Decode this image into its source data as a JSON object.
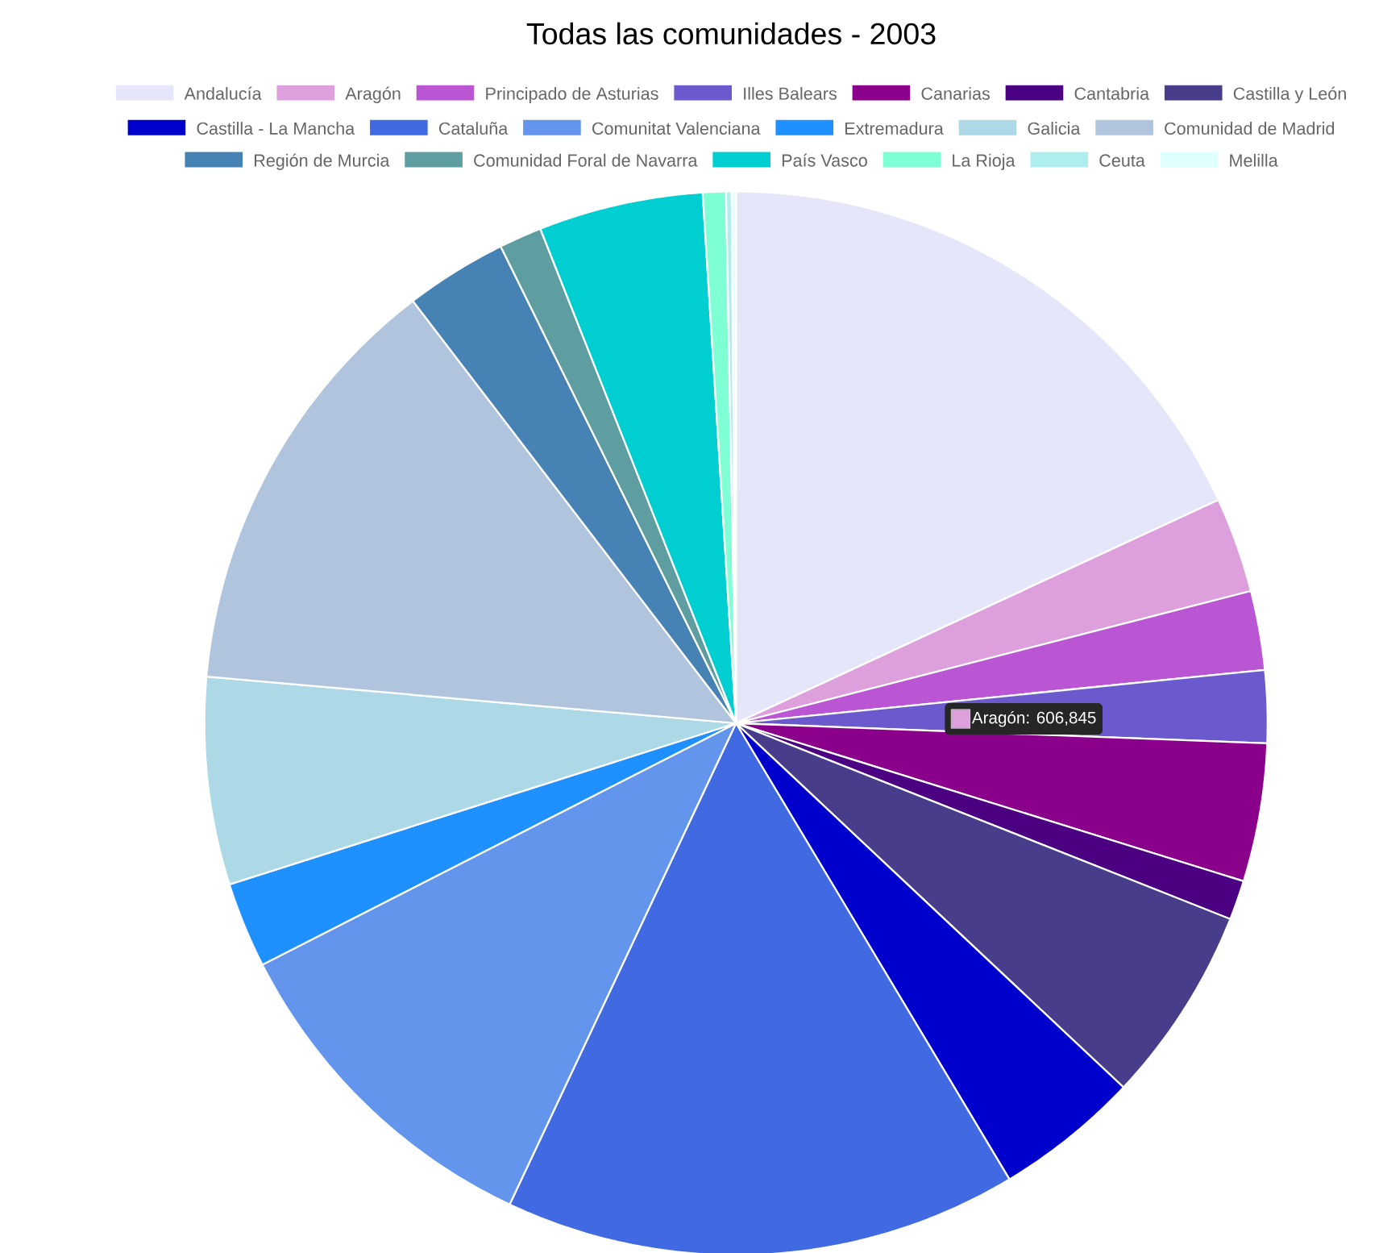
{
  "chart_data": {
    "type": "pie",
    "title": "Todas las comunidades - 2003",
    "legend": "top",
    "categories": [
      "Andalucía",
      "Aragón",
      "Principado de Asturias",
      "Illes Balears",
      "Canarias",
      "Cantabria",
      "Castilla y León",
      "Castilla - La Mancha",
      "Cataluña",
      "Comunitat Valenciana",
      "Extremadura",
      "Galicia",
      "Comunidad de Madrid",
      "Región de Murcia",
      "Comunidad Foral de Navarra",
      "País Vasco",
      "La Rioja",
      "Ceuta",
      "Melilla"
    ],
    "values": [
      18.1,
      2.9,
      2.4,
      2.2,
      4.2,
      1.2,
      6.0,
      4.4,
      15.6,
      10.5,
      2.6,
      6.3,
      13.2,
      3.1,
      1.3,
      5.0,
      0.7,
      0.17,
      0.13
    ],
    "colors": [
      "#e6e6fa",
      "#dda0dd",
      "#ba55d3",
      "#6a5acd",
      "#8b008b",
      "#4b0082",
      "#483d8b",
      "#0000cd",
      "#4169e1",
      "#6495ed",
      "#1e90ff",
      "#add8e6",
      "#b0c4de",
      "#4682b4",
      "#5f9ea0",
      "#00ced1",
      "#7fffd4",
      "#afeeee",
      "#e0ffff"
    ],
    "annotations": [
      {
        "text": "Aragón: 606,845",
        "x": "Aragón"
      }
    ]
  }
}
